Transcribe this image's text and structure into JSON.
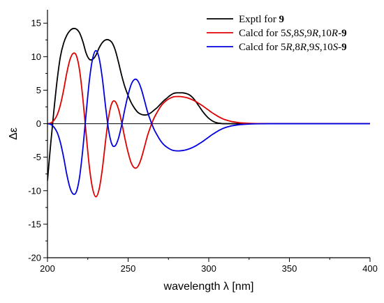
{
  "chart_data": {
    "type": "line",
    "xlabel": "wavelength λ [nm]",
    "ylabel": "Δε",
    "xlim": [
      200,
      400
    ],
    "ylim": [
      -20,
      17
    ],
    "x_ticks": [
      200,
      250,
      300,
      350,
      400
    ],
    "y_ticks": [
      -20,
      -15,
      -10,
      -5,
      0,
      5,
      10,
      15
    ],
    "zero_line": true,
    "legend_position": "top-right",
    "series": [
      {
        "name": "Exptl for 9",
        "color": "#000000",
        "legend_segments": [
          {
            "text": "Exptl for ",
            "bold": false,
            "italic": false
          },
          {
            "text": "9",
            "bold": true,
            "italic": false
          }
        ],
        "points": [
          [
            200,
            -8.5
          ],
          [
            202,
            -3
          ],
          [
            204,
            2
          ],
          [
            206,
            6.5
          ],
          [
            208,
            10
          ],
          [
            210,
            12
          ],
          [
            212,
            13.2
          ],
          [
            214,
            13.9
          ],
          [
            216,
            14.2
          ],
          [
            218,
            14.1
          ],
          [
            220,
            13.5
          ],
          [
            222,
            12.2
          ],
          [
            224,
            10.5
          ],
          [
            226,
            9.6
          ],
          [
            228,
            9.6
          ],
          [
            230,
            10.2
          ],
          [
            232,
            11.3
          ],
          [
            234,
            12.1
          ],
          [
            236,
            12.5
          ],
          [
            238,
            12.5
          ],
          [
            240,
            12.1
          ],
          [
            242,
            11
          ],
          [
            244,
            9.2
          ],
          [
            246,
            7.2
          ],
          [
            248,
            5.5
          ],
          [
            250,
            4.2
          ],
          [
            252,
            3.1
          ],
          [
            254,
            2.3
          ],
          [
            256,
            1.7
          ],
          [
            258,
            1.4
          ],
          [
            260,
            1.3
          ],
          [
            262,
            1.35
          ],
          [
            264,
            1.6
          ],
          [
            266,
            2
          ],
          [
            268,
            2.4
          ],
          [
            270,
            2.9
          ],
          [
            272,
            3.4
          ],
          [
            274,
            3.8
          ],
          [
            276,
            4.2
          ],
          [
            278,
            4.5
          ],
          [
            280,
            4.6
          ],
          [
            282,
            4.6
          ],
          [
            284,
            4.6
          ],
          [
            286,
            4.5
          ],
          [
            288,
            4.3
          ],
          [
            290,
            3.9
          ],
          [
            292,
            3.3
          ],
          [
            294,
            2.6
          ],
          [
            296,
            1.9
          ],
          [
            298,
            1.3
          ],
          [
            300,
            0.8
          ],
          [
            302,
            0.45
          ],
          [
            304,
            0.2
          ],
          [
            306,
            0.08
          ],
          [
            308,
            0.02
          ],
          [
            310,
            0
          ],
          [
            320,
            0
          ],
          [
            340,
            0
          ],
          [
            360,
            0
          ],
          [
            380,
            0
          ],
          [
            400,
            0
          ]
        ]
      },
      {
        "name": "Calcd for 5S,8S,9R,10R-9",
        "color": "#e00000",
        "legend_segments": [
          {
            "text": "Calcd for 5",
            "bold": false,
            "italic": false
          },
          {
            "text": "S",
            "bold": false,
            "italic": true
          },
          {
            "text": ",8",
            "bold": false,
            "italic": false
          },
          {
            "text": "S",
            "bold": false,
            "italic": true
          },
          {
            "text": ",9",
            "bold": false,
            "italic": false
          },
          {
            "text": "R",
            "bold": false,
            "italic": true
          },
          {
            "text": ",10",
            "bold": false,
            "italic": false
          },
          {
            "text": "R",
            "bold": false,
            "italic": true
          },
          {
            "text": "-",
            "bold": false,
            "italic": false
          },
          {
            "text": "9",
            "bold": true,
            "italic": false
          }
        ],
        "points": [
          [
            200,
            0
          ],
          [
            202,
            0.1
          ],
          [
            204,
            0.5
          ],
          [
            206,
            1.3
          ],
          [
            208,
            2.8
          ],
          [
            210,
            5
          ],
          [
            212,
            7.6
          ],
          [
            214,
            9.6
          ],
          [
            216,
            10.5
          ],
          [
            218,
            10.1
          ],
          [
            220,
            7.8
          ],
          [
            222,
            3.6
          ],
          [
            224,
            -1.6
          ],
          [
            226,
            -6.5
          ],
          [
            228,
            -9.7
          ],
          [
            230,
            -10.9
          ],
          [
            232,
            -9.8
          ],
          [
            234,
            -6.8
          ],
          [
            236,
            -2.6
          ],
          [
            238,
            1.1
          ],
          [
            240,
            3.1
          ],
          [
            242,
            3.3
          ],
          [
            244,
            2.2
          ],
          [
            246,
            0.2
          ],
          [
            248,
            -2.2
          ],
          [
            250,
            -4.3
          ],
          [
            252,
            -5.9
          ],
          [
            254,
            -6.6
          ],
          [
            256,
            -6.4
          ],
          [
            258,
            -5.3
          ],
          [
            260,
            -3.6
          ],
          [
            262,
            -1.8
          ],
          [
            264,
            -0.4
          ],
          [
            266,
            0.8
          ],
          [
            268,
            1.7
          ],
          [
            270,
            2.5
          ],
          [
            272,
            3.1
          ],
          [
            274,
            3.5
          ],
          [
            276,
            3.8
          ],
          [
            278,
            4
          ],
          [
            280,
            4.05
          ],
          [
            282,
            4.05
          ],
          [
            284,
            4
          ],
          [
            286,
            3.9
          ],
          [
            288,
            3.75
          ],
          [
            290,
            3.55
          ],
          [
            292,
            3.3
          ],
          [
            294,
            3
          ],
          [
            296,
            2.7
          ],
          [
            298,
            2.35
          ],
          [
            300,
            2
          ],
          [
            302,
            1.65
          ],
          [
            304,
            1.35
          ],
          [
            306,
            1.05
          ],
          [
            308,
            0.8
          ],
          [
            310,
            0.6
          ],
          [
            314,
            0.33
          ],
          [
            318,
            0.18
          ],
          [
            322,
            0.09
          ],
          [
            326,
            0.04
          ],
          [
            330,
            0.02
          ],
          [
            340,
            0
          ],
          [
            360,
            0
          ],
          [
            380,
            0
          ],
          [
            400,
            0
          ]
        ]
      },
      {
        "name": "Calcd for 5R,8R,9S,10S-9",
        "color": "#0000e0",
        "legend_segments": [
          {
            "text": "Calcd for 5",
            "bold": false,
            "italic": false
          },
          {
            "text": "R",
            "bold": false,
            "italic": true
          },
          {
            "text": ",8",
            "bold": false,
            "italic": false
          },
          {
            "text": "R",
            "bold": false,
            "italic": true
          },
          {
            "text": ",9",
            "bold": false,
            "italic": false
          },
          {
            "text": "S",
            "bold": false,
            "italic": true
          },
          {
            "text": ",10",
            "bold": false,
            "italic": false
          },
          {
            "text": "S",
            "bold": false,
            "italic": true
          },
          {
            "text": "-",
            "bold": false,
            "italic": false
          },
          {
            "text": "9",
            "bold": true,
            "italic": false
          }
        ],
        "points": [
          [
            200,
            0
          ],
          [
            202,
            -0.1
          ],
          [
            204,
            -0.5
          ],
          [
            206,
            -1.3
          ],
          [
            208,
            -2.8
          ],
          [
            210,
            -5
          ],
          [
            212,
            -7.6
          ],
          [
            214,
            -9.6
          ],
          [
            216,
            -10.5
          ],
          [
            218,
            -10.1
          ],
          [
            220,
            -7.8
          ],
          [
            222,
            -3.6
          ],
          [
            224,
            1.6
          ],
          [
            226,
            6.5
          ],
          [
            228,
            9.7
          ],
          [
            230,
            10.9
          ],
          [
            232,
            9.8
          ],
          [
            234,
            6.8
          ],
          [
            236,
            2.6
          ],
          [
            238,
            -1.1
          ],
          [
            240,
            -3.1
          ],
          [
            242,
            -3.3
          ],
          [
            244,
            -2.2
          ],
          [
            246,
            -0.2
          ],
          [
            248,
            2.2
          ],
          [
            250,
            4.3
          ],
          [
            252,
            5.9
          ],
          [
            254,
            6.6
          ],
          [
            256,
            6.4
          ],
          [
            258,
            5.3
          ],
          [
            260,
            3.6
          ],
          [
            262,
            1.8
          ],
          [
            264,
            0.4
          ],
          [
            266,
            -0.8
          ],
          [
            268,
            -1.7
          ],
          [
            270,
            -2.5
          ],
          [
            272,
            -3.1
          ],
          [
            274,
            -3.5
          ],
          [
            276,
            -3.8
          ],
          [
            278,
            -4
          ],
          [
            280,
            -4.05
          ],
          [
            282,
            -4.05
          ],
          [
            284,
            -4
          ],
          [
            286,
            -3.9
          ],
          [
            288,
            -3.75
          ],
          [
            290,
            -3.55
          ],
          [
            292,
            -3.3
          ],
          [
            294,
            -3
          ],
          [
            296,
            -2.7
          ],
          [
            298,
            -2.35
          ],
          [
            300,
            -2
          ],
          [
            302,
            -1.65
          ],
          [
            304,
            -1.35
          ],
          [
            306,
            -1.05
          ],
          [
            308,
            -0.8
          ],
          [
            310,
            -0.6
          ],
          [
            314,
            -0.33
          ],
          [
            318,
            -0.18
          ],
          [
            322,
            -0.09
          ],
          [
            326,
            -0.04
          ],
          [
            330,
            -0.02
          ],
          [
            340,
            0
          ],
          [
            360,
            0
          ],
          [
            380,
            0
          ],
          [
            400,
            0
          ]
        ]
      }
    ]
  }
}
